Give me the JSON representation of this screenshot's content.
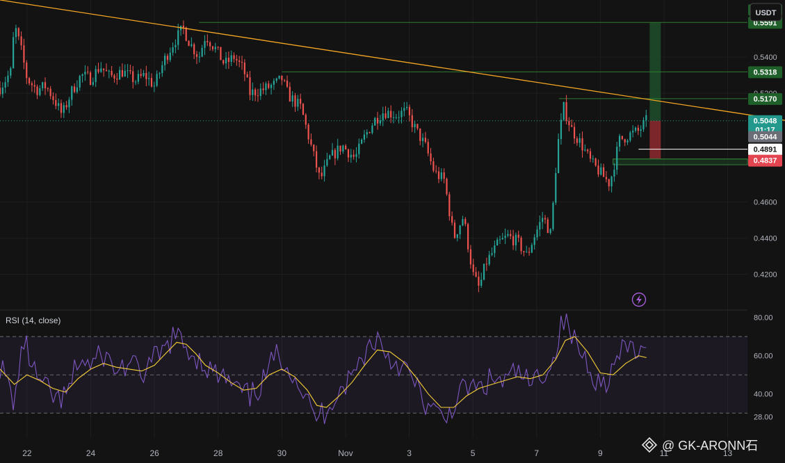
{
  "chart_data": {
    "type": "candlestick",
    "symbol_currency": "USDT",
    "x_axis": {
      "ticks": [
        {
          "label": "22",
          "day": 22
        },
        {
          "label": "24",
          "day": 24
        },
        {
          "label": "26",
          "day": 26
        },
        {
          "label": "28",
          "day": 28
        },
        {
          "label": "30",
          "day": 30
        },
        {
          "label": "Nov",
          "day": 32
        },
        {
          "label": "3",
          "day": 34
        },
        {
          "label": "5",
          "day": 36
        },
        {
          "label": "7",
          "day": 38
        },
        {
          "label": "9",
          "day": 40
        },
        {
          "label": "11",
          "day": 42
        },
        {
          "label": "13",
          "day": 44
        }
      ],
      "range_days": [
        21.15,
        45.8
      ]
    },
    "price_axis": {
      "ticks": [
        "0.5400",
        "0.5200",
        "0.4600",
        "0.4400",
        "0.4200"
      ],
      "ylim": [
        0.401,
        0.5715
      ]
    },
    "price_path": [
      [
        21.15,
        0.523
      ],
      [
        21.5,
        0.532
      ],
      [
        21.6,
        0.558
      ],
      [
        21.8,
        0.545
      ],
      [
        22.0,
        0.528
      ],
      [
        22.3,
        0.522
      ],
      [
        22.6,
        0.524
      ],
      [
        22.9,
        0.515
      ],
      [
        23.1,
        0.508
      ],
      [
        23.4,
        0.521
      ],
      [
        23.7,
        0.53
      ],
      [
        24.0,
        0.528
      ],
      [
        24.3,
        0.535
      ],
      [
        24.6,
        0.529
      ],
      [
        25.0,
        0.532
      ],
      [
        25.4,
        0.527
      ],
      [
        25.7,
        0.53
      ],
      [
        26.0,
        0.524
      ],
      [
        26.3,
        0.538
      ],
      [
        26.6,
        0.548
      ],
      [
        26.9,
        0.556
      ],
      [
        27.1,
        0.548
      ],
      [
        27.4,
        0.54
      ],
      [
        27.6,
        0.552
      ],
      [
        27.9,
        0.545
      ],
      [
        28.2,
        0.536
      ],
      [
        28.5,
        0.54
      ],
      [
        28.8,
        0.533
      ],
      [
        29.0,
        0.52
      ],
      [
        29.4,
        0.522
      ],
      [
        29.8,
        0.525
      ],
      [
        30.0,
        0.528
      ],
      [
        30.2,
        0.519
      ],
      [
        30.6,
        0.512
      ],
      [
        30.9,
        0.492
      ],
      [
        31.2,
        0.472
      ],
      [
        31.5,
        0.484
      ],
      [
        31.9,
        0.491
      ],
      [
        32.3,
        0.484
      ],
      [
        32.6,
        0.496
      ],
      [
        32.9,
        0.505
      ],
      [
        33.2,
        0.51
      ],
      [
        33.6,
        0.508
      ],
      [
        33.9,
        0.51
      ],
      [
        34.2,
        0.5
      ],
      [
        34.5,
        0.491
      ],
      [
        34.8,
        0.476
      ],
      [
        35.1,
        0.472
      ],
      [
        35.4,
        0.44
      ],
      [
        35.7,
        0.452
      ],
      [
        36.0,
        0.42
      ],
      [
        36.2,
        0.412
      ],
      [
        36.4,
        0.426
      ],
      [
        36.8,
        0.437
      ],
      [
        37.1,
        0.441
      ],
      [
        37.4,
        0.438
      ],
      [
        37.7,
        0.43
      ],
      [
        37.9,
        0.44
      ],
      [
        38.2,
        0.452
      ],
      [
        38.45,
        0.442
      ],
      [
        38.65,
        0.49
      ],
      [
        38.85,
        0.512
      ],
      [
        39.1,
        0.5
      ],
      [
        39.4,
        0.492
      ],
      [
        39.7,
        0.482
      ],
      [
        40.0,
        0.476
      ],
      [
        40.3,
        0.47
      ],
      [
        40.6,
        0.494
      ],
      [
        40.9,
        0.497
      ],
      [
        41.2,
        0.499
      ],
      [
        41.45,
        0.5048
      ]
    ],
    "trendline": {
      "from": [
        21.15,
        0.5715
      ],
      "to": [
        45.8,
        0.505
      ]
    },
    "levels": [
      {
        "price": 0.5591,
        "label": "0.5591",
        "kind": "target"
      },
      {
        "price": 0.5318,
        "label": "0.5318",
        "kind": "resistance"
      },
      {
        "price": 0.517,
        "label": "0.5170",
        "kind": "resistance"
      },
      {
        "price": 0.4891,
        "label": "0.4891",
        "kind": "white-line"
      },
      {
        "price": 0.4837,
        "label": "0.4837",
        "kind": "stop"
      }
    ],
    "current": {
      "price": 0.5048,
      "label": "0.5048",
      "countdown": "01:17"
    },
    "previous_close": {
      "label": "0.5044"
    },
    "position": {
      "entry": 0.5048,
      "target": 0.5591,
      "stop": 0.4837,
      "start_day": 41.55,
      "end_day": 41.9
    },
    "support_zone": {
      "top": 0.4837,
      "bottom": 0.4805,
      "start_day": 40.4
    },
    "rsi": {
      "title": "RSI (14, close)",
      "ticks": [
        "80.00",
        "60.00",
        "40.00",
        "28.00"
      ],
      "ylim": [
        17,
        83.5
      ],
      "bands": [
        70,
        50,
        30
      ],
      "rsi_path": [
        [
          21.15,
          55
        ],
        [
          21.6,
          36
        ],
        [
          21.9,
          68
        ],
        [
          22.3,
          48
        ],
        [
          22.6,
          42
        ],
        [
          23.0,
          36
        ],
        [
          23.3,
          40
        ],
        [
          23.6,
          58
        ],
        [
          24.0,
          55
        ],
        [
          24.4,
          61
        ],
        [
          24.8,
          52
        ],
        [
          25.2,
          56
        ],
        [
          25.6,
          50
        ],
        [
          26.0,
          58
        ],
        [
          26.3,
          62
        ],
        [
          26.6,
          71
        ],
        [
          27.0,
          64
        ],
        [
          27.3,
          60
        ],
        [
          27.6,
          55
        ],
        [
          27.9,
          50
        ],
        [
          28.2,
          48
        ],
        [
          28.6,
          42
        ],
        [
          29.0,
          38
        ],
        [
          29.4,
          46
        ],
        [
          29.8,
          60
        ],
        [
          30.1,
          58
        ],
        [
          30.4,
          50
        ],
        [
          30.7,
          40
        ],
        [
          31.0,
          28
        ],
        [
          31.3,
          30
        ],
        [
          31.6,
          38
        ],
        [
          32.0,
          45
        ],
        [
          32.3,
          52
        ],
        [
          32.6,
          62
        ],
        [
          33.0,
          70
        ],
        [
          33.4,
          58
        ],
        [
          33.8,
          55
        ],
        [
          34.2,
          44
        ],
        [
          34.5,
          35
        ],
        [
          34.8,
          30
        ],
        [
          35.1,
          26
        ],
        [
          35.4,
          35
        ],
        [
          35.8,
          44
        ],
        [
          36.2,
          42
        ],
        [
          36.6,
          48
        ],
        [
          37.0,
          46
        ],
        [
          37.4,
          52
        ],
        [
          37.8,
          44
        ],
        [
          38.2,
          52
        ],
        [
          38.5,
          55
        ],
        [
          38.7,
          72
        ],
        [
          38.9,
          80
        ],
        [
          39.1,
          70
        ],
        [
          39.4,
          62
        ],
        [
          39.7,
          54
        ],
        [
          40.0,
          44
        ],
        [
          40.3,
          50
        ],
        [
          40.6,
          60
        ],
        [
          40.9,
          65
        ],
        [
          41.2,
          62
        ],
        [
          41.45,
          58
        ]
      ],
      "ma_path": [
        [
          21.15,
          53
        ],
        [
          21.6,
          45
        ],
        [
          22.0,
          50
        ],
        [
          22.4,
          47
        ],
        [
          22.8,
          43
        ],
        [
          23.2,
          41
        ],
        [
          23.6,
          48
        ],
        [
          24.0,
          53
        ],
        [
          24.4,
          56
        ],
        [
          24.8,
          54
        ],
        [
          25.2,
          53
        ],
        [
          25.6,
          52
        ],
        [
          26.0,
          55
        ],
        [
          26.4,
          62
        ],
        [
          26.7,
          67
        ],
        [
          27.0,
          66
        ],
        [
          27.3,
          61
        ],
        [
          27.6,
          55
        ],
        [
          28.0,
          51
        ],
        [
          28.4,
          46
        ],
        [
          28.8,
          42
        ],
        [
          29.2,
          43
        ],
        [
          29.6,
          50
        ],
        [
          30.0,
          53
        ],
        [
          30.4,
          49
        ],
        [
          30.8,
          42
        ],
        [
          31.1,
          34
        ],
        [
          31.4,
          33
        ],
        [
          31.8,
          39
        ],
        [
          32.2,
          46
        ],
        [
          32.6,
          55
        ],
        [
          33.0,
          63
        ],
        [
          33.4,
          62
        ],
        [
          33.8,
          57
        ],
        [
          34.2,
          49
        ],
        [
          34.6,
          40
        ],
        [
          35.0,
          33
        ],
        [
          35.4,
          33
        ],
        [
          35.8,
          39
        ],
        [
          36.2,
          43
        ],
        [
          36.6,
          45
        ],
        [
          37.0,
          47
        ],
        [
          37.4,
          49
        ],
        [
          37.8,
          48
        ],
        [
          38.2,
          50
        ],
        [
          38.6,
          58
        ],
        [
          38.9,
          68
        ],
        [
          39.2,
          70
        ],
        [
          39.6,
          62
        ],
        [
          40.0,
          51
        ],
        [
          40.4,
          50
        ],
        [
          40.8,
          56
        ],
        [
          41.2,
          60
        ],
        [
          41.45,
          59
        ]
      ]
    }
  },
  "watermark": {
    "text": "@ GK-ARONN石"
  },
  "colors": {
    "bg": "#131313",
    "up": "#26a69a",
    "down": "#ef5350",
    "trend": "#f5a623",
    "level": "#2e7d32",
    "rsi": "#7e57c2",
    "rsi_ma": "#f7d038"
  }
}
